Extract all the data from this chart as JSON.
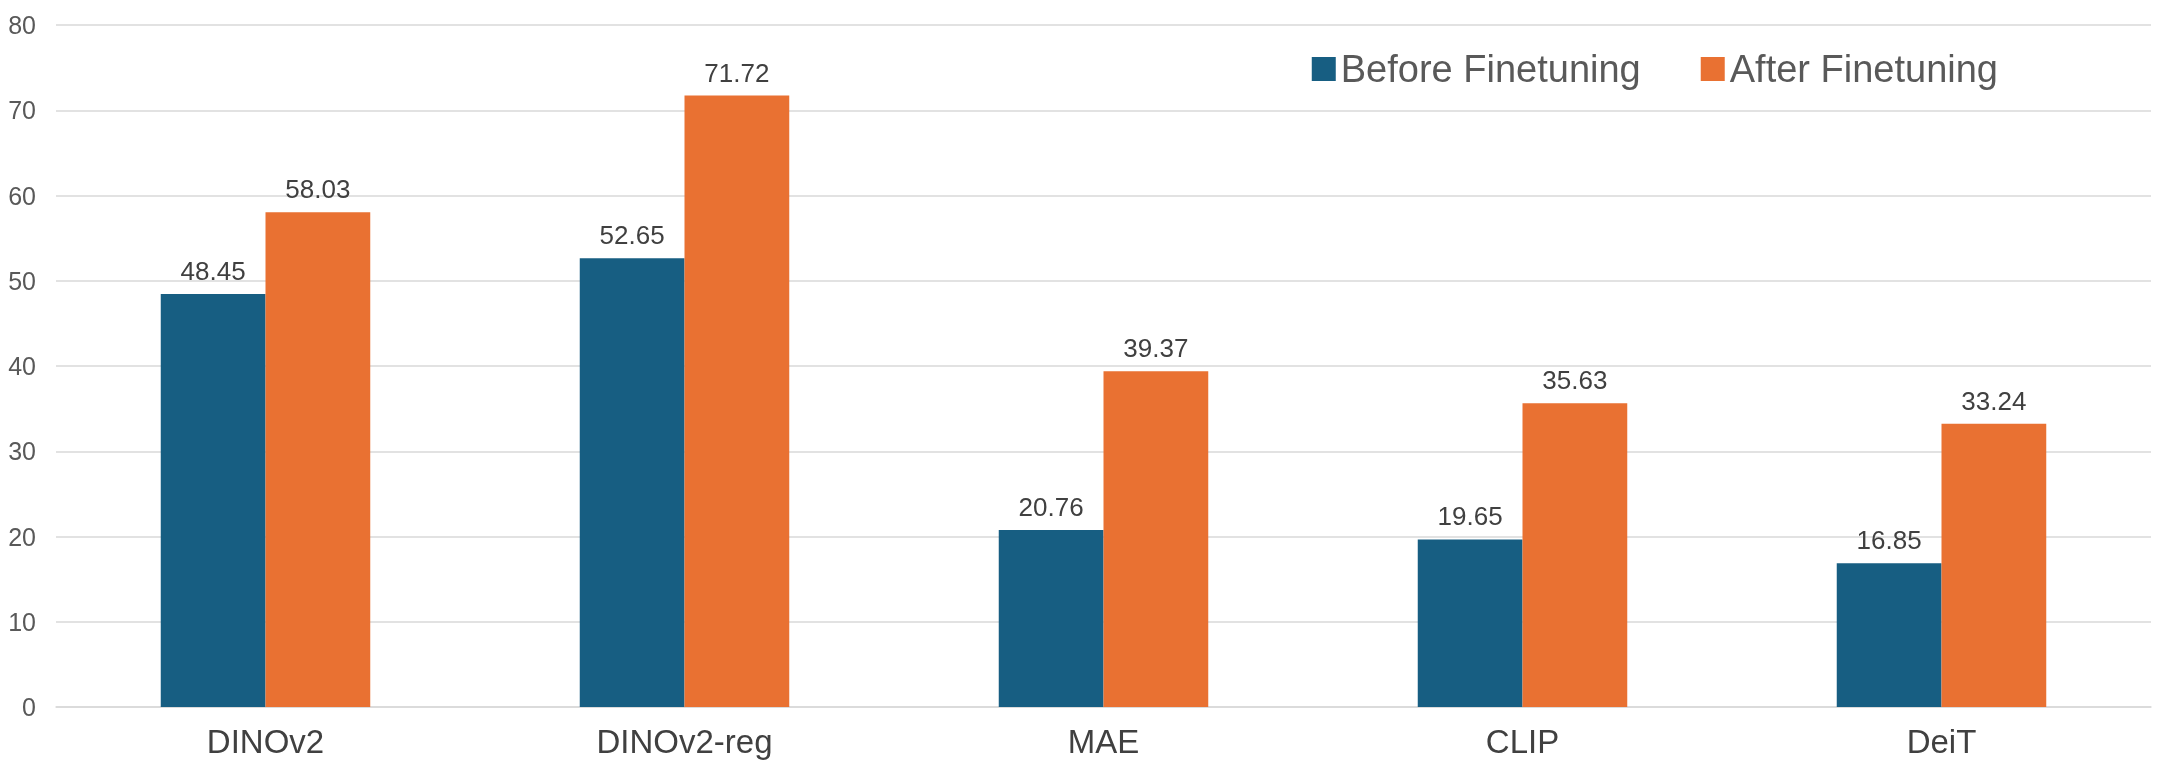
{
  "chart_data": {
    "type": "bar",
    "categories": [
      "DINOv2",
      "DINOv2-reg",
      "MAE",
      "CLIP",
      "DeiT"
    ],
    "series": [
      {
        "name": "Before Finetuning",
        "color": "#175e82",
        "values": [
          48.45,
          52.65,
          20.76,
          19.65,
          16.85
        ]
      },
      {
        "name": "After Finetuning",
        "color": "#e97132",
        "values": [
          58.03,
          71.72,
          39.37,
          35.63,
          33.24
        ]
      }
    ],
    "ylim": [
      0,
      80
    ],
    "yticks": [
      0,
      10,
      20,
      30,
      40,
      50,
      60,
      70,
      80
    ],
    "grid": "y",
    "legend": "top right",
    "data_labels": true
  }
}
